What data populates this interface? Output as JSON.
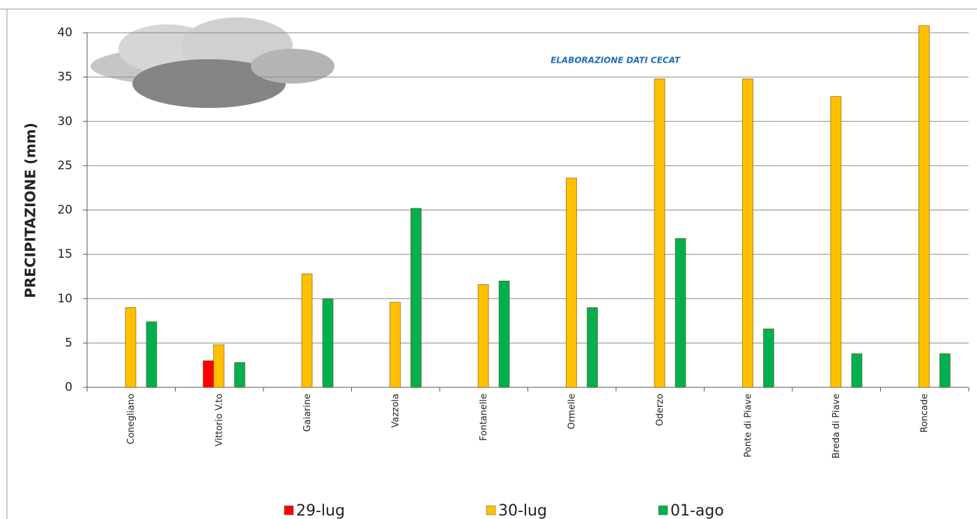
{
  "chart_data": {
    "type": "bar",
    "y_label": "PRECIPITAZIONE (mm)",
    "annotation": "ELABORAZIONE DATI CECAT",
    "categories": [
      "Conegliano",
      "Vittorio V.to",
      "Gaiarine",
      "Vazzola",
      "Fontanelle",
      "Ormelle",
      "Oderzo",
      "Ponte di Piave",
      "Breda di Piave",
      "Roncade"
    ],
    "series": [
      {
        "name": "29-lug",
        "color": "#ff0000",
        "values": [
          null,
          3,
          null,
          null,
          null,
          null,
          null,
          null,
          null,
          null
        ]
      },
      {
        "name": "30-lug",
        "color": "#ffc000",
        "values": [
          9,
          4.8,
          12.8,
          9.6,
          11.6,
          23.6,
          34.8,
          34.8,
          32.8,
          40.8
        ]
      },
      {
        "name": "01-ago",
        "color": "#00b050",
        "values": [
          7.4,
          2.8,
          10,
          20.2,
          12,
          9,
          16.8,
          6.6,
          3.8,
          3.8
        ]
      }
    ],
    "ylim": [
      0,
      40
    ],
    "yticks": [
      0,
      5,
      10,
      15,
      20,
      25,
      30,
      35,
      40
    ],
    "grid": true
  }
}
